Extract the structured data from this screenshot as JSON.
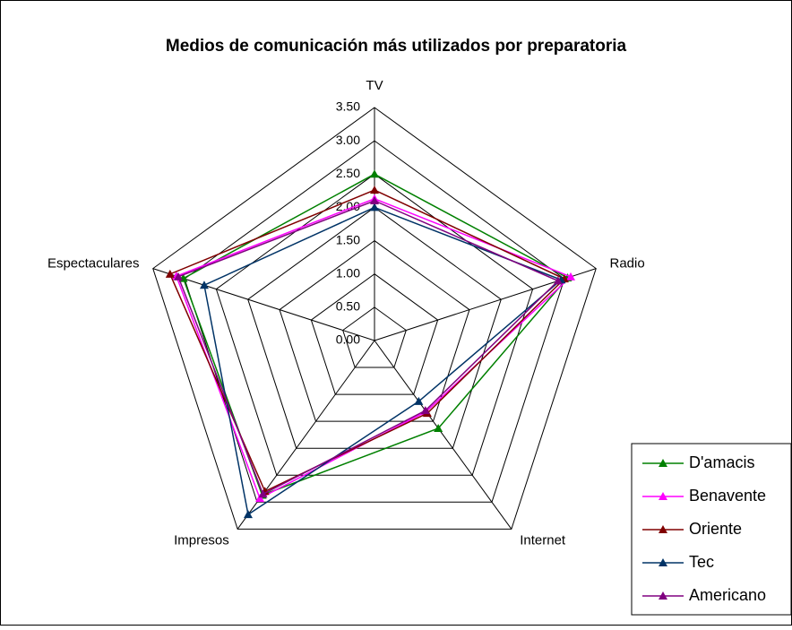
{
  "chart_data": {
    "type": "radar",
    "title": "Medios de comunicación más utilizados por preparatoria",
    "categories": [
      "TV",
      "Radio",
      "Internet",
      "Impresos",
      "Espectaculares"
    ],
    "rlim": [
      0,
      3.5
    ],
    "rticks": [
      {
        "value": 0,
        "label": "0.00"
      },
      {
        "value": 0.5,
        "label": "0.50"
      },
      {
        "value": 1,
        "label": "1.00"
      },
      {
        "value": 1.5,
        "label": "1.50"
      },
      {
        "value": 2,
        "label": "2.00"
      },
      {
        "value": 2.5,
        "label": "2.50"
      },
      {
        "value": 3,
        "label": "3.00"
      },
      {
        "value": 3.5,
        "label": "3.50"
      }
    ],
    "grid": true,
    "legend": "lower right",
    "series": [
      {
        "name": "D'amacis",
        "color": "#008000",
        "values": [
          2.5,
          3.05,
          1.63,
          2.87,
          3.02
        ]
      },
      {
        "name": "Benavente",
        "color": "#ff00ff",
        "values": [
          2.13,
          3.1,
          1.32,
          2.93,
          3.13
        ]
      },
      {
        "name": "Oriente",
        "color": "#800000",
        "values": [
          2.26,
          3.0,
          1.35,
          2.8,
          3.23
        ]
      },
      {
        "name": "Tec",
        "color": "#003366",
        "values": [
          2.0,
          2.95,
          1.13,
          3.23,
          2.69
        ]
      },
      {
        "name": "Americano",
        "color": "#800080",
        "values": [
          2.1,
          2.9,
          1.3,
          2.85,
          3.1
        ]
      }
    ]
  }
}
